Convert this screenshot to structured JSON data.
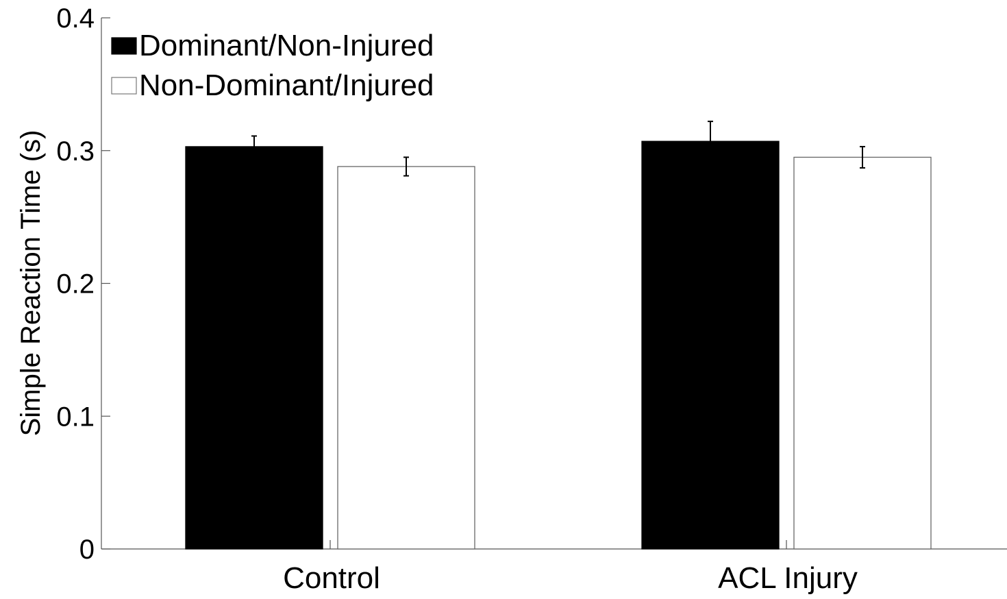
{
  "chart_data": {
    "type": "bar",
    "title": "",
    "xlabel": "",
    "ylabel": "Simple Reaction Time (s)",
    "categories": [
      "Control",
      "ACL Injury"
    ],
    "series": [
      {
        "name": "Dominant/Non-Injured",
        "values": [
          0.303,
          0.307
        ],
        "errors": [
          0.008,
          0.015
        ],
        "color": "#000000"
      },
      {
        "name": "Non-Dominant/Injured",
        "values": [
          0.288,
          0.295
        ],
        "errors": [
          0.007,
          0.008
        ],
        "color": "#ffffff"
      }
    ],
    "ylim": [
      0,
      0.4
    ],
    "yticks": [
      0,
      0.1,
      0.2,
      0.3,
      0.4
    ],
    "ytick_labels": [
      "0",
      "0.1",
      "0.2",
      "0.3",
      "0.4"
    ],
    "grid": false,
    "legend_position": "top-left"
  }
}
